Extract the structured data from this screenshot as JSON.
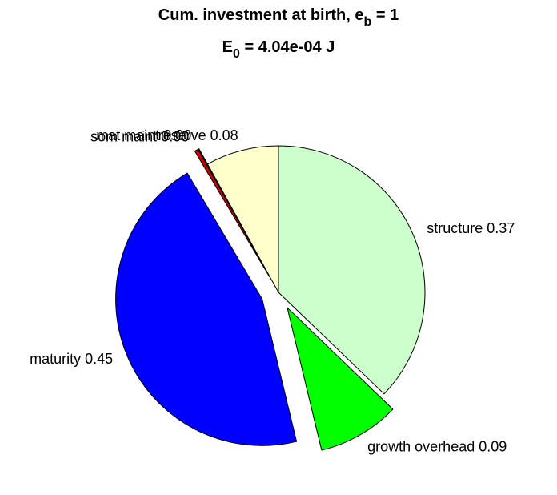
{
  "chart_data": {
    "type": "pie",
    "title": {
      "text": "Cum. investment at birth, e",
      "sub": "b",
      "after": " = 1"
    },
    "subtitle": {
      "text": "E",
      "sub": "0",
      "after": " = 4.04e-04 J"
    },
    "categories": [
      "structure",
      "growth overhead",
      "maturity",
      "som maint",
      "mat maint",
      "reserve"
    ],
    "values": [
      0.37,
      0.09,
      0.45,
      0.004,
      0.001,
      0.08
    ],
    "value_labels": [
      "0.37",
      "0.09",
      "0.45",
      "0.00",
      "0.00",
      "0.08"
    ],
    "colors": [
      "#ccffcc",
      "#00ff00",
      "#0000ff",
      "#cc0000",
      "#990000",
      "#ffffcc"
    ],
    "explode": [
      false,
      true,
      true,
      true,
      true,
      false
    ],
    "direction": "clockwise"
  }
}
